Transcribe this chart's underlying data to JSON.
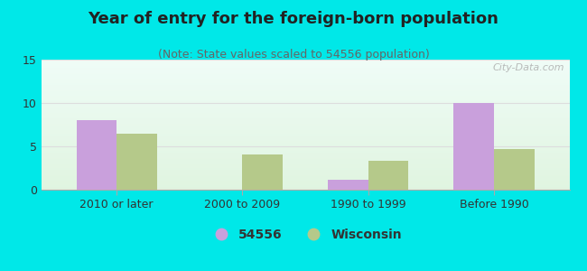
{
  "title": "Year of entry for the foreign-born population",
  "subtitle": "(Note: State values scaled to 54556 population)",
  "categories": [
    "2010 or later",
    "2000 to 2009",
    "1990 to 1999",
    "Before 1990"
  ],
  "series_54556": [
    8.0,
    0.0,
    1.1,
    10.0
  ],
  "series_wisconsin": [
    6.5,
    4.1,
    3.3,
    4.7
  ],
  "color_54556": "#c9a0dc",
  "color_wisconsin": "#b5c98a",
  "background_outer": "#00e8e8",
  "ylim": [
    0,
    15
  ],
  "yticks": [
    0,
    5,
    10,
    15
  ],
  "title_fontsize": 13,
  "subtitle_fontsize": 9,
  "tick_fontsize": 9,
  "legend_label_54556": "54556",
  "legend_label_wisconsin": "Wisconsin",
  "watermark": "City-Data.com",
  "bar_width": 0.32
}
